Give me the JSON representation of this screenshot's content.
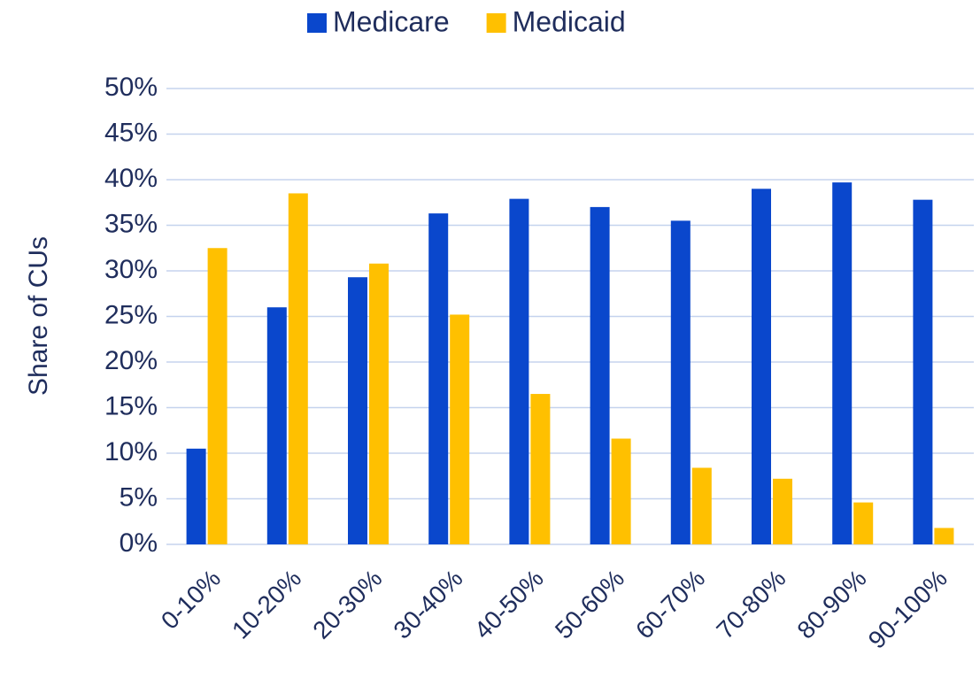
{
  "chart_data": {
    "type": "bar",
    "y_label": "Share of CUs",
    "categories": [
      "0-10%",
      "10-20%",
      "20-30%",
      "30-40%",
      "40-50%",
      "50-60%",
      "60-70%",
      "70-80%",
      "80-90%",
      "90-100%"
    ],
    "series": [
      {
        "name": "Medicare",
        "color": "#0a47cc",
        "values": [
          10.5,
          26,
          29.3,
          36.3,
          37.9,
          37,
          35.5,
          39,
          39.7,
          37.8
        ]
      },
      {
        "name": "Medicaid",
        "color": "#ffc000",
        "values": [
          32.5,
          38.5,
          30.8,
          25.2,
          16.5,
          11.6,
          8.4,
          7.2,
          4.6,
          1.8
        ]
      }
    ],
    "ylim": [
      0,
      50
    ],
    "yticks": [
      {
        "value": 0,
        "label": "0%"
      },
      {
        "value": 5,
        "label": "5%"
      },
      {
        "value": 10,
        "label": "10%"
      },
      {
        "value": 15,
        "label": "15%"
      },
      {
        "value": 20,
        "label": "20%"
      },
      {
        "value": 25,
        "label": "25%"
      },
      {
        "value": 30,
        "label": "30%"
      },
      {
        "value": 35,
        "label": "35%"
      },
      {
        "value": 40,
        "label": "40%"
      },
      {
        "value": 45,
        "label": "45%"
      },
      {
        "value": 50,
        "label": "50%"
      }
    ],
    "grid": true,
    "legend": "top"
  }
}
